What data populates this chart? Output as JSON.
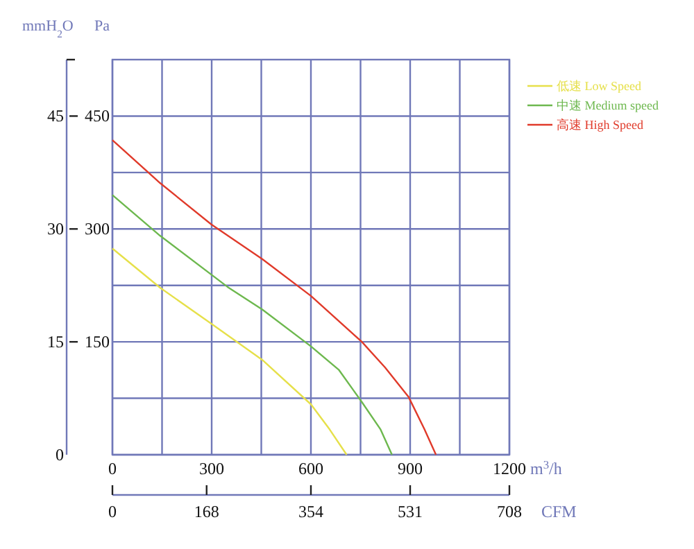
{
  "chart_data": {
    "type": "line",
    "xlabel": "m$^{3}$/h",
    "ylabel": "Pa",
    "y2label": "mmH$_{2}$O",
    "x2label": "CFM",
    "xlim": [
      0,
      1200
    ],
    "xticks": [
      0,
      {
        "value": 150,
        "label": null
      },
      300,
      {
        "value": 450,
        "label": null
      },
      600,
      {
        "value": 750,
        "label": null
      },
      900,
      {
        "value": 1050,
        "label": null
      },
      1200
    ],
    "ylim": [
      0,
      525
    ],
    "yticks": [
      {
        "value": 0,
        "label": null
      },
      {
        "value": 75,
        "label": null
      },
      150,
      {
        "value": 225,
        "label": null
      },
      300,
      {
        "value": 375,
        "label": null
      },
      450
    ],
    "y2lim": [
      0,
      52.5
    ],
    "y2ticks": [
      0,
      15,
      30,
      45
    ],
    "x2lim": [
      0,
      708
    ],
    "x2ticks": [
      0,
      168,
      354,
      531,
      708
    ],
    "grid": true,
    "legend": "top right",
    "marker": "none",
    "line_style": "solid",
    "series": [
      {
        "name": "低速 Low Speed",
        "color": "#e6e04a",
        "x": [
          0,
          144,
          299,
          453,
          600,
          656,
          708
        ],
        "values": [
          274,
          222,
          174,
          126,
          67,
          34,
          0
        ]
      },
      {
        "name": "中速 Medium speed",
        "color": "#6db84e",
        "x": [
          0,
          144,
          348,
          453,
          600,
          684,
          754,
          810,
          845
        ],
        "values": [
          345,
          291,
          223,
          193,
          144,
          113,
          70,
          34,
          0
        ]
      },
      {
        "name": "高速 High Speed",
        "color": "#e03a2a",
        "x": [
          0,
          144,
          299,
          453,
          600,
          754,
          824,
          895,
          943,
          978
        ],
        "values": [
          418,
          361,
          306,
          260,
          211,
          150,
          116,
          77,
          34,
          0
        ]
      }
    ]
  }
}
